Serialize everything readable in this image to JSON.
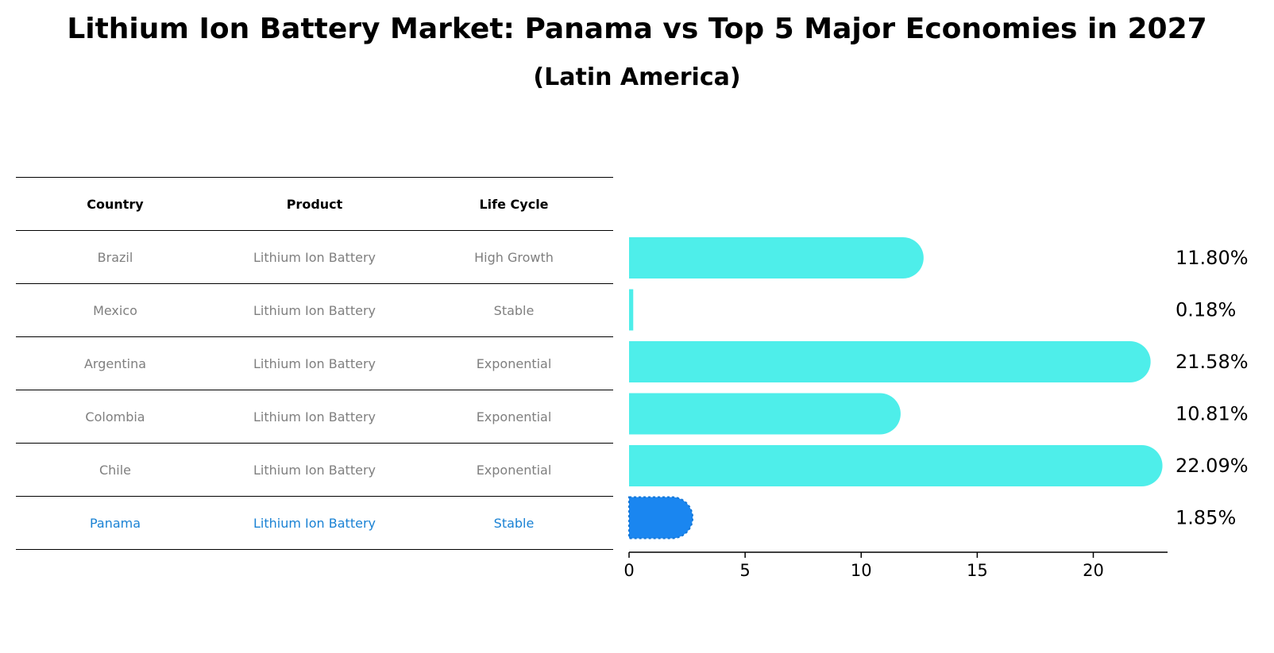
{
  "title": "Lithium Ion Battery Market: Panama vs Top 5 Major Economies in 2027",
  "subtitle": "(Latin America)",
  "table": {
    "headers": [
      "Country",
      "Product",
      "Life Cycle"
    ],
    "rows": [
      [
        "Brazil",
        "Lithium Ion Battery",
        "High Growth"
      ],
      [
        "Mexico",
        "Lithium Ion Battery",
        "Stable"
      ],
      [
        "Argentina",
        "Lithium Ion Battery",
        "Exponential"
      ],
      [
        "Colombia",
        "Lithium Ion Battery",
        "Exponential"
      ],
      [
        "Chile",
        "Lithium Ion Battery",
        "Exponential"
      ],
      [
        "Panama",
        "Lithium Ion Battery",
        "Stable"
      ]
    ]
  },
  "chart_data": {
    "type": "bar",
    "orientation": "horizontal",
    "categories": [
      "Brazil",
      "Mexico",
      "Argentina",
      "Colombia",
      "Chile",
      "Panama"
    ],
    "values": [
      11.8,
      0.18,
      21.58,
      10.81,
      22.09,
      1.85
    ],
    "value_labels": [
      "11.80%",
      "0.18%",
      "21.58%",
      "10.81%",
      "22.09%",
      "1.85%"
    ],
    "highlight": "Panama",
    "xlim": [
      0,
      23.2
    ],
    "xticks": [
      0,
      5,
      10,
      15,
      20
    ],
    "colors": {
      "default": "#4eeeea",
      "highlight": "#1a86f0"
    }
  }
}
